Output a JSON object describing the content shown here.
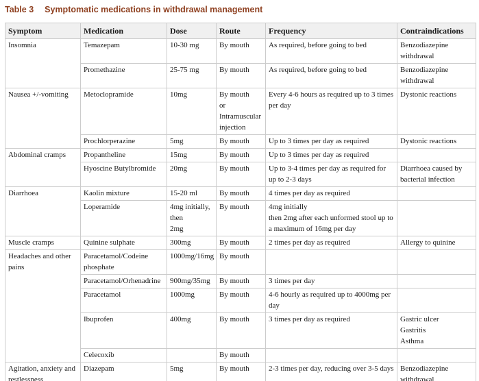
{
  "caption": {
    "label": "Table 3",
    "text": "Symptomatic medications in withdrawal management",
    "color": "#8f4121"
  },
  "table": {
    "columns": [
      "Symptom",
      "Medication",
      "Dose",
      "Route",
      "Frequency",
      "Contraindications"
    ],
    "groups": [
      {
        "symptom": "Insomnia",
        "rows": [
          {
            "medication": "Temazepam",
            "dose": "10-30 mg",
            "route": "By mouth",
            "frequency": "As required, before going to bed",
            "contraindications": "Benzodiazepine withdrawal"
          },
          {
            "medication": "Promethazine",
            "dose": "25-75 mg",
            "route": "By mouth",
            "frequency": "As required, before going to bed",
            "contraindications": "Benzodiazepine withdrawal"
          }
        ]
      },
      {
        "symptom": "Nausea +/-vomiting",
        "rows": [
          {
            "medication": "Metoclopramide",
            "dose": "10mg",
            "route": "By mouth\nor\nIntramuscular injection",
            "frequency": "Every 4-6 hours as required up to 3 times per day",
            "contraindications": "Dystonic reactions"
          },
          {
            "medication": "Prochlorperazine",
            "dose": "5mg",
            "route": "By mouth",
            "frequency": "Up to 3 times per day as required",
            "contraindications": "Dystonic reactions"
          }
        ]
      },
      {
        "symptom": "Abdominal cramps",
        "rows": [
          {
            "medication": "Propantheline",
            "dose": "15mg",
            "route": "By mouth",
            "frequency": "Up to 3 times per day as required",
            "contraindications": ""
          },
          {
            "medication": "Hyoscine Butylbromide",
            "dose": "20mg",
            "route": "By mouth",
            "frequency": "Up to 3-4 times per day as required for up to 2-3 days",
            "contraindications": "Diarrhoea caused by bacterial infection"
          }
        ]
      },
      {
        "symptom": "Diarrhoea",
        "rows": [
          {
            "medication": "Kaolin mixture",
            "dose": "15-20 ml",
            "route": "By mouth",
            "frequency": "4 times per day as required",
            "contraindications": ""
          },
          {
            "medication": "Loperamide",
            "dose": "4mg initially,\nthen\n2mg",
            "route": "By mouth",
            "frequency": "4mg initially\nthen 2mg after each unformed stool up to a maximum of 16mg per day",
            "contraindications": ""
          }
        ]
      },
      {
        "symptom": "Muscle cramps",
        "rows": [
          {
            "medication": "Quinine sulphate",
            "dose": "300mg",
            "route": "By mouth",
            "frequency": "2 times per day as required",
            "contraindications": "Allergy to quinine"
          }
        ]
      },
      {
        "symptom": "Headaches and other pains",
        "rows": [
          {
            "medication": "Paracetamol/Codeine phosphate",
            "dose": "1000mg/16mg",
            "route": "By mouth",
            "frequency": "",
            "contraindications": ""
          },
          {
            "medication": "Paracetamol/Orhenadrine",
            "dose": "900mg/35mg",
            "route": "By mouth",
            "frequency": "3 times per day",
            "contraindications": ""
          },
          {
            "medication": "Paracetamol",
            "dose": "1000mg",
            "route": "By mouth",
            "frequency": "4-6 hourly as required up to 4000mg per day",
            "contraindications": ""
          },
          {
            "medication": "Ibuprofen",
            "dose": "400mg",
            "route": "By mouth",
            "frequency": "3 times per day as required",
            "contraindications": "Gastric ulcer\nGastritis\nAsthma"
          },
          {
            "medication": "Celecoxib",
            "dose": "",
            "route": "By mouth",
            "frequency": "",
            "contraindications": ""
          }
        ]
      },
      {
        "symptom": "Agitation, anxiety and restlessness",
        "rows": [
          {
            "medication": "Diazepam",
            "dose": "5mg",
            "route": "By mouth",
            "frequency": "2-3 times per day, reducing over 3-5 days",
            "contraindications": "Benzodiazepine withdrawal"
          }
        ]
      }
    ]
  }
}
